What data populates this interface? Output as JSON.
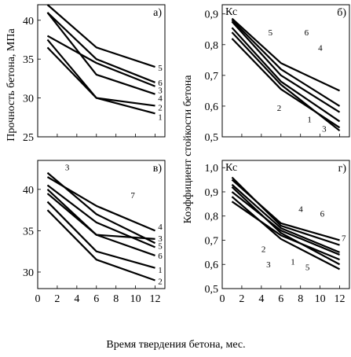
{
  "figure": {
    "ylabel_left": "Прочность бетона, МПа",
    "ylabel_right": "Коэффициент стойкости бетона",
    "xlabel": "Время твердения бетона, мес."
  },
  "chart_data": [
    {
      "panel": "а)",
      "type": "line",
      "xlim": [
        0,
        13
      ],
      "ylim": [
        25,
        42
      ],
      "xticks": [],
      "yticks": [
        25,
        30,
        35,
        40
      ],
      "series": [
        {
          "label": "1",
          "x": [
            1,
            6,
            12
          ],
          "y": [
            36.5,
            30.0,
            28.0
          ]
        },
        {
          "label": "2",
          "x": [
            1,
            6,
            12
          ],
          "y": [
            37.5,
            30.0,
            29.0
          ]
        },
        {
          "label": "3",
          "x": [
            1,
            6,
            12
          ],
          "y": [
            41.0,
            33.0,
            30.5
          ]
        },
        {
          "label": "4",
          "x": [
            1,
            6,
            12
          ],
          "y": [
            38.0,
            34.5,
            31.5
          ]
        },
        {
          "label": "5",
          "x": [
            1,
            6,
            12
          ],
          "y": [
            42.0,
            36.5,
            34.0
          ]
        },
        {
          "label": "6",
          "x": [
            1,
            6,
            12
          ],
          "y": [
            41.0,
            35.0,
            32.0
          ]
        }
      ],
      "annotations": [
        {
          "text": "5",
          "x": 12.3,
          "y": 33.9
        },
        {
          "text": "6",
          "x": 12.3,
          "y": 32.0
        },
        {
          "text": "3",
          "x": 12.3,
          "y": 31.0
        },
        {
          "text": "4",
          "x": 12.3,
          "y": 30.0
        },
        {
          "text": "2",
          "x": 12.3,
          "y": 28.8
        },
        {
          "text": "1",
          "x": 12.3,
          "y": 27.6
        }
      ]
    },
    {
      "panel": "б)",
      "unit": "Кс",
      "type": "line",
      "xlim": [
        0,
        13
      ],
      "ylim": [
        0.5,
        0.93
      ],
      "xticks": [],
      "yticks": [
        0.5,
        0.6,
        0.7,
        0.8,
        0.9
      ],
      "series": [
        {
          "label": "1",
          "x": [
            1,
            6,
            12
          ],
          "y": [
            0.82,
            0.655,
            0.53
          ]
        },
        {
          "label": "2",
          "x": [
            1,
            6,
            12
          ],
          "y": [
            0.84,
            0.67,
            0.52
          ]
        },
        {
          "label": "3",
          "x": [
            1,
            6,
            12
          ],
          "y": [
            0.855,
            0.68,
            0.55
          ]
        },
        {
          "label": "4",
          "x": [
            1,
            6,
            12
          ],
          "y": [
            0.875,
            0.7,
            0.58
          ]
        },
        {
          "label": "5",
          "x": [
            1,
            6,
            12
          ],
          "y": [
            0.885,
            0.74,
            0.65
          ]
        },
        {
          "label": "6",
          "x": [
            1,
            6,
            12
          ],
          "y": [
            0.88,
            0.72,
            0.6
          ]
        }
      ],
      "annotations": [
        {
          "text": "5",
          "x": 4.7,
          "y": 0.84
        },
        {
          "text": "6",
          "x": 8.4,
          "y": 0.84
        },
        {
          "text": "4",
          "x": 9.8,
          "y": 0.79
        },
        {
          "text": "2",
          "x": 5.6,
          "y": 0.595
        },
        {
          "text": "1",
          "x": 8.7,
          "y": 0.557
        },
        {
          "text": "3",
          "x": 10.2,
          "y": 0.527
        }
      ]
    },
    {
      "panel": "в)",
      "type": "line",
      "xlim": [
        0,
        13
      ],
      "ylim": [
        28,
        43.5
      ],
      "xticks": [
        0,
        2,
        4,
        6,
        8,
        10,
        12
      ],
      "yticks": [
        30,
        35,
        40
      ],
      "series": [
        {
          "label": "1",
          "x": [
            1,
            6,
            12
          ],
          "y": [
            38.5,
            32.5,
            30.5
          ]
        },
        {
          "label": "2",
          "x": [
            1,
            6,
            12
          ],
          "y": [
            37.5,
            31.5,
            29.0
          ]
        },
        {
          "label": "3",
          "x": [
            1,
            6,
            12
          ],
          "y": [
            42.0,
            37.0,
            33.5
          ]
        },
        {
          "label": "4",
          "x": [
            1,
            6,
            12
          ],
          "y": [
            41.5,
            38.0,
            35.0
          ]
        },
        {
          "label": "5",
          "x": [
            1,
            6,
            12
          ],
          "y": [
            40.5,
            36.0,
            33.0
          ]
        },
        {
          "label": "6",
          "x": [
            1,
            6,
            12
          ],
          "y": [
            39.5,
            34.5,
            32.0
          ]
        },
        {
          "label": "7",
          "x": [
            1,
            6,
            12
          ],
          "y": [
            40.0,
            34.5,
            34.0
          ]
        }
      ],
      "annotations": [
        {
          "text": "3",
          "x": 2.8,
          "y": 42.7
        },
        {
          "text": "7",
          "x": 9.5,
          "y": 39.3
        },
        {
          "text": "4",
          "x": 12.3,
          "y": 35.5
        },
        {
          "text": "3",
          "x": 12.3,
          "y": 34.1
        },
        {
          "text": "5",
          "x": 12.3,
          "y": 33.2
        },
        {
          "text": "6",
          "x": 12.3,
          "y": 32.0
        },
        {
          "text": "1",
          "x": 12.3,
          "y": 30.3
        },
        {
          "text": "2",
          "x": 12.3,
          "y": 28.9
        }
      ]
    },
    {
      "panel": "г)",
      "unit": "Кс",
      "type": "line",
      "xlim": [
        0,
        13
      ],
      "ylim": [
        0.5,
        1.03
      ],
      "xticks": [
        0,
        2,
        4,
        6,
        8,
        10,
        12
      ],
      "yticks": [
        0.5,
        0.6,
        0.7,
        0.8,
        0.9,
        1.0
      ],
      "series": [
        {
          "label": "1",
          "x": [
            1,
            6,
            12
          ],
          "y": [
            0.86,
            0.72,
            0.62
          ]
        },
        {
          "label": "2",
          "x": [
            1,
            6,
            12
          ],
          "y": [
            0.9,
            0.74,
            0.64
          ]
        },
        {
          "label": "3",
          "x": [
            1,
            6,
            12
          ],
          "y": [
            0.88,
            0.705,
            0.58
          ]
        },
        {
          "label": "4",
          "x": [
            1,
            6,
            12
          ],
          "y": [
            0.95,
            0.77,
            0.7
          ]
        },
        {
          "label": "5",
          "x": [
            1,
            6,
            12
          ],
          "y": [
            0.93,
            0.75,
            0.65
          ]
        },
        {
          "label": "6",
          "x": [
            1,
            6,
            12
          ],
          "y": [
            0.96,
            0.76,
            0.68
          ]
        },
        {
          "label": "7",
          "x": [
            1,
            6,
            12
          ],
          "y": [
            0.92,
            0.73,
            0.6
          ]
        }
      ],
      "annotations": [
        {
          "text": "4",
          "x": 7.8,
          "y": 0.83
        },
        {
          "text": "6",
          "x": 10.0,
          "y": 0.81
        },
        {
          "text": "2",
          "x": 4.0,
          "y": 0.665
        },
        {
          "text": "3",
          "x": 4.5,
          "y": 0.6
        },
        {
          "text": "1",
          "x": 7.0,
          "y": 0.612
        },
        {
          "text": "5",
          "x": 8.5,
          "y": 0.59
        },
        {
          "text": "7",
          "x": 12.2,
          "y": 0.71
        }
      ]
    }
  ]
}
